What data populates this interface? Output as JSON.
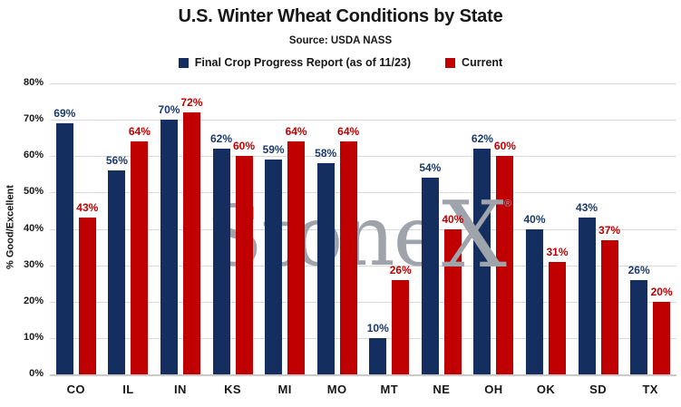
{
  "chart_data": {
    "type": "bar",
    "title": "U.S. Winter Wheat Conditions by State",
    "subtitle": "Source: USDA NASS",
    "ylabel": "% Good/Excellent",
    "ylim": [
      0,
      80
    ],
    "yticks": [
      "80%",
      "70%",
      "60%",
      "50%",
      "40%",
      "30%",
      "20%",
      "10%",
      "0%"
    ],
    "grid": true,
    "legend_position": "top",
    "categories": [
      "CO",
      "IL",
      "IN",
      "KS",
      "MI",
      "MO",
      "MT",
      "NE",
      "OH",
      "OK",
      "SD",
      "TX"
    ],
    "series": [
      {
        "name": "Final Crop Progress Report (as of 11/23)",
        "color": "#142E5F",
        "label_color": "#1B3A6B",
        "values": [
          69,
          56,
          70,
          62,
          59,
          58,
          10,
          54,
          62,
          40,
          43,
          26
        ]
      },
      {
        "name": "Current",
        "color": "#C00000",
        "label_color": "#C00000",
        "values": [
          43,
          64,
          72,
          60,
          64,
          64,
          26,
          40,
          60,
          31,
          37,
          20
        ]
      }
    ],
    "value_suffix": "%",
    "watermark": {
      "text_main": "Stone",
      "text_x": "X",
      "registered": "®",
      "color": "#9EA3AC"
    },
    "gridline_color": "#D9D9D9"
  }
}
